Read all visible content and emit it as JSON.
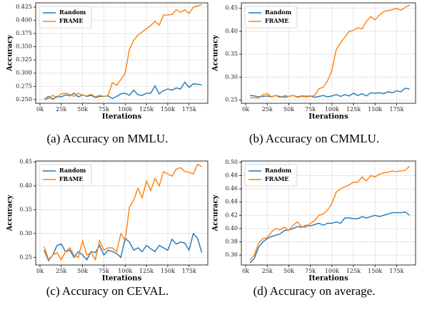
{
  "chart_data": [
    {
      "type": "line",
      "caption": "(a) Accuracy on MMLU.",
      "xlabel": "Iterations",
      "ylabel": "Accuracy",
      "legend": "upper left",
      "grid": true,
      "x": [
        5000,
        10000,
        15000,
        20000,
        25000,
        30000,
        35000,
        40000,
        45000,
        50000,
        55000,
        60000,
        65000,
        70000,
        75000,
        80000,
        85000,
        90000,
        95000,
        100000,
        105000,
        110000,
        115000,
        120000,
        125000,
        130000,
        135000,
        140000,
        145000,
        150000,
        155000,
        160000,
        165000,
        170000,
        175000,
        180000,
        185000,
        190000
      ],
      "series": [
        {
          "name": "Random",
          "color": "#1f77b4",
          "values": [
            0.25,
            0.256,
            0.251,
            0.256,
            0.255,
            0.259,
            0.257,
            0.262,
            0.255,
            0.259,
            0.256,
            0.258,
            0.254,
            0.256,
            0.256,
            0.257,
            0.252,
            0.256,
            0.261,
            0.262,
            0.258,
            0.268,
            0.259,
            0.258,
            0.262,
            0.262,
            0.276,
            0.261,
            0.267,
            0.27,
            0.268,
            0.272,
            0.27,
            0.283,
            0.273,
            0.28,
            0.279,
            0.278
          ]
        },
        {
          "name": "FRAME",
          "color": "#ff7f0e",
          "values": [
            0.25,
            0.252,
            0.258,
            0.254,
            0.261,
            0.262,
            0.26,
            0.256,
            0.262,
            0.258,
            0.257,
            0.26,
            0.255,
            0.258,
            0.256,
            0.258,
            0.282,
            0.277,
            0.288,
            0.3,
            0.345,
            0.362,
            0.372,
            0.378,
            0.384,
            0.39,
            0.398,
            0.391,
            0.41,
            0.41,
            0.411,
            0.42,
            0.415,
            0.42,
            0.413,
            0.425,
            0.427,
            0.43
          ]
        }
      ],
      "xlim": [
        -5000,
        197000
      ],
      "xticks": [
        {
          "value": 0,
          "label": "0k"
        },
        {
          "value": 25000,
          "label": "25k"
        },
        {
          "value": 50000,
          "label": "50k"
        },
        {
          "value": 75000,
          "label": "75k"
        },
        {
          "value": 100000,
          "label": "100k"
        },
        {
          "value": 125000,
          "label": "125k"
        },
        {
          "value": 150000,
          "label": "150k"
        },
        {
          "value": 175000,
          "label": "175k"
        }
      ],
      "ylim": [
        0.243,
        0.433
      ],
      "yticks": [
        {
          "value": 0.25,
          "label": "0.250"
        },
        0.275,
        {
          "value": 0.3,
          "label": "0.300"
        },
        0.325,
        {
          "value": 0.35,
          "label": "0.350"
        },
        0.375,
        {
          "value": 0.4,
          "label": "0.400"
        },
        0.425
      ]
    },
    {
      "type": "line",
      "caption": "(b) Accuracy on CMMLU.",
      "xlabel": "Iterations",
      "ylabel": "Accuracy",
      "legend": "upper left",
      "grid": true,
      "x": [
        5000,
        10000,
        15000,
        20000,
        25000,
        30000,
        35000,
        40000,
        45000,
        50000,
        55000,
        60000,
        65000,
        70000,
        75000,
        80000,
        85000,
        90000,
        95000,
        100000,
        105000,
        110000,
        115000,
        120000,
        125000,
        130000,
        135000,
        140000,
        145000,
        150000,
        155000,
        160000,
        165000,
        170000,
        175000,
        180000,
        185000,
        190000
      ],
      "series": [
        {
          "name": "Random",
          "color": "#1f77b4",
          "values": [
            0.26,
            0.259,
            0.257,
            0.258,
            0.259,
            0.257,
            0.26,
            0.256,
            0.259,
            0.258,
            0.26,
            0.257,
            0.259,
            0.258,
            0.259,
            0.256,
            0.258,
            0.26,
            0.257,
            0.259,
            0.262,
            0.258,
            0.262,
            0.259,
            0.265,
            0.26,
            0.264,
            0.259,
            0.266,
            0.265,
            0.266,
            0.264,
            0.268,
            0.266,
            0.27,
            0.268,
            0.276,
            0.274
          ]
        },
        {
          "name": "FRAME",
          "color": "#ff7f0e",
          "values": [
            0.255,
            0.255,
            0.254,
            0.262,
            0.264,
            0.257,
            0.26,
            0.258,
            0.255,
            0.258,
            0.26,
            0.256,
            0.258,
            0.257,
            0.258,
            0.26,
            0.275,
            0.278,
            0.292,
            0.315,
            0.36,
            0.375,
            0.387,
            0.4,
            0.402,
            0.408,
            0.405,
            0.422,
            0.432,
            0.425,
            0.435,
            0.443,
            0.445,
            0.447,
            0.45,
            0.446,
            0.452,
            0.457
          ]
        }
      ],
      "xlim": [
        -5000,
        197000
      ],
      "xticks": [
        {
          "value": 0,
          "label": "0k"
        },
        {
          "value": 25000,
          "label": "25k"
        },
        {
          "value": 50000,
          "label": "50k"
        },
        {
          "value": 75000,
          "label": "75k"
        },
        {
          "value": 100000,
          "label": "100k"
        },
        {
          "value": 125000,
          "label": "125k"
        },
        {
          "value": 150000,
          "label": "150k"
        },
        {
          "value": 175000,
          "label": "175k"
        }
      ],
      "ylim": [
        0.243,
        0.462
      ],
      "yticks": [
        0.25,
        {
          "value": 0.3,
          "label": "0.30"
        },
        0.35,
        {
          "value": 0.4,
          "label": "0.40"
        },
        0.45
      ]
    },
    {
      "type": "line",
      "caption": "(c) Accuracy on CEVAL.",
      "xlabel": "Iterations",
      "ylabel": "Accuracy",
      "legend": "upper left",
      "grid": true,
      "x": [
        5000,
        10000,
        15000,
        20000,
        25000,
        30000,
        35000,
        40000,
        45000,
        50000,
        55000,
        60000,
        65000,
        70000,
        75000,
        80000,
        85000,
        90000,
        95000,
        100000,
        105000,
        110000,
        115000,
        120000,
        125000,
        130000,
        135000,
        140000,
        145000,
        150000,
        155000,
        160000,
        165000,
        170000,
        175000,
        180000,
        185000,
        190000
      ],
      "series": [
        {
          "name": "Random",
          "color": "#1f77b4",
          "values": [
            0.265,
            0.243,
            0.255,
            0.275,
            0.278,
            0.262,
            0.265,
            0.25,
            0.262,
            0.255,
            0.245,
            0.262,
            0.26,
            0.275,
            0.255,
            0.265,
            0.262,
            0.258,
            0.25,
            0.29,
            0.282,
            0.265,
            0.27,
            0.262,
            0.275,
            0.268,
            0.262,
            0.275,
            0.27,
            0.265,
            0.288,
            0.278,
            0.282,
            0.28,
            0.265,
            0.3,
            0.29,
            0.26
          ]
        },
        {
          "name": "FRAME",
          "color": "#ff7f0e",
          "values": [
            0.272,
            0.245,
            0.255,
            0.26,
            0.245,
            0.262,
            0.27,
            0.255,
            0.25,
            0.285,
            0.255,
            0.26,
            0.245,
            0.285,
            0.265,
            0.27,
            0.27,
            0.262,
            0.3,
            0.285,
            0.355,
            0.37,
            0.395,
            0.375,
            0.41,
            0.39,
            0.415,
            0.4,
            0.43,
            0.425,
            0.42,
            0.435,
            0.438,
            0.43,
            0.428,
            0.425,
            0.445,
            0.44
          ]
        }
      ],
      "xlim": [
        -5000,
        197000
      ],
      "xticks": [
        {
          "value": 0,
          "label": "0k"
        },
        {
          "value": 25000,
          "label": "25k"
        },
        {
          "value": 50000,
          "label": "50k"
        },
        {
          "value": 75000,
          "label": "75k"
        },
        {
          "value": 100000,
          "label": "100k"
        },
        {
          "value": 125000,
          "label": "125k"
        },
        {
          "value": 150000,
          "label": "150k"
        },
        {
          "value": 175000,
          "label": "175k"
        }
      ],
      "ylim": [
        0.234,
        0.452
      ],
      "yticks": [
        0.25,
        {
          "value": 0.3,
          "label": "0.30"
        },
        0.35,
        {
          "value": 0.4,
          "label": "0.40"
        },
        0.45
      ]
    },
    {
      "type": "line",
      "caption": "(d) Accuracy on average.",
      "xlabel": "Iterations",
      "ylabel": "Accuracy",
      "legend": "upper left",
      "grid": true,
      "x": [
        5000,
        10000,
        15000,
        20000,
        25000,
        30000,
        35000,
        40000,
        45000,
        50000,
        55000,
        60000,
        65000,
        70000,
        75000,
        80000,
        85000,
        90000,
        95000,
        100000,
        105000,
        110000,
        115000,
        120000,
        125000,
        130000,
        135000,
        140000,
        145000,
        150000,
        155000,
        160000,
        165000,
        170000,
        175000,
        180000,
        185000,
        190000
      ],
      "series": [
        {
          "name": "Random",
          "color": "#1f77b4",
          "values": [
            0.348,
            0.355,
            0.372,
            0.38,
            0.385,
            0.388,
            0.39,
            0.392,
            0.397,
            0.398,
            0.4,
            0.403,
            0.402,
            0.405,
            0.404,
            0.406,
            0.408,
            0.405,
            0.408,
            0.408,
            0.41,
            0.408,
            0.416,
            0.416,
            0.415,
            0.415,
            0.418,
            0.416,
            0.418,
            0.42,
            0.418,
            0.42,
            0.422,
            0.424,
            0.424,
            0.424,
            0.425,
            0.42
          ]
        },
        {
          "name": "FRAME",
          "color": "#ff7f0e",
          "values": [
            0.352,
            0.36,
            0.378,
            0.385,
            0.386,
            0.395,
            0.4,
            0.398,
            0.402,
            0.397,
            0.405,
            0.41,
            0.403,
            0.402,
            0.408,
            0.412,
            0.42,
            0.422,
            0.428,
            0.438,
            0.455,
            0.46,
            0.463,
            0.466,
            0.47,
            0.47,
            0.478,
            0.472,
            0.48,
            0.478,
            0.482,
            0.484,
            0.485,
            0.487,
            0.486,
            0.487,
            0.488,
            0.494
          ]
        }
      ],
      "xlim": [
        -5000,
        197000
      ],
      "xticks": [
        {
          "value": 0,
          "label": "0k"
        },
        {
          "value": 25000,
          "label": "25k"
        },
        {
          "value": 50000,
          "label": "50k"
        },
        {
          "value": 75000,
          "label": "75k"
        },
        {
          "value": 100000,
          "label": "100k"
        },
        {
          "value": 125000,
          "label": "125k"
        },
        {
          "value": 150000,
          "label": "150k"
        },
        {
          "value": 175000,
          "label": "175k"
        }
      ],
      "ylim": [
        0.345,
        0.502
      ],
      "yticks": [
        0.36,
        0.38,
        {
          "value": 0.4,
          "label": "0.40"
        },
        0.42,
        0.44,
        0.46,
        0.48,
        {
          "value": 0.5,
          "label": "0.50"
        }
      ]
    }
  ]
}
